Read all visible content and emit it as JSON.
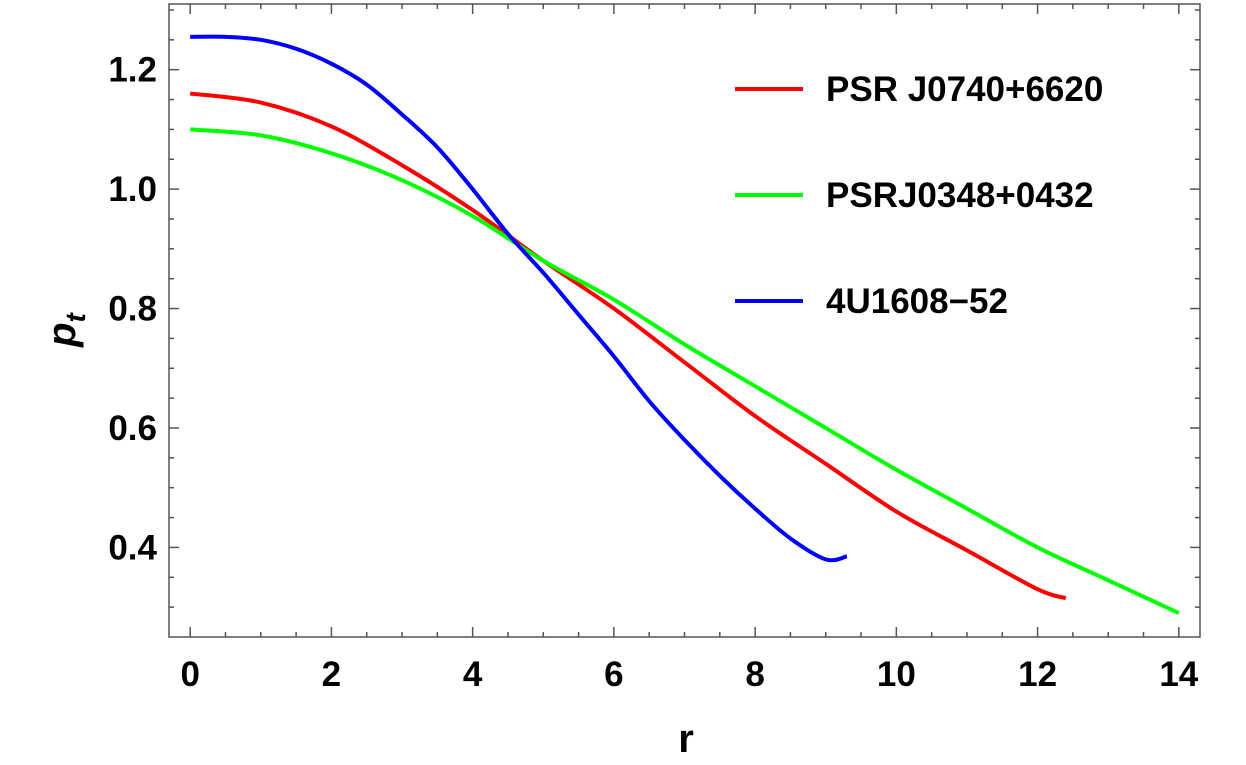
{
  "chart_data": {
    "type": "line",
    "title": "",
    "xlabel": "r",
    "ylabel_main": "p",
    "ylabel_sub": "t",
    "xlim": [
      -0.3,
      14.3
    ],
    "ylim": [
      0.25,
      1.31
    ],
    "x_ticks": [
      0,
      2,
      4,
      6,
      8,
      10,
      12,
      14
    ],
    "x_tick_labels": [
      "0",
      "2",
      "4",
      "6",
      "8",
      "10",
      "12",
      "14"
    ],
    "y_ticks": [
      0.4,
      0.6,
      0.8,
      1.0,
      1.2
    ],
    "y_tick_labels": [
      "0.4",
      "0.6",
      "0.8",
      "1.0",
      "1.2"
    ],
    "grid": false,
    "legend_position": "top-right",
    "series": [
      {
        "name": "PSR J0740+6620",
        "color": "#ff0000",
        "x": [
          0,
          1,
          2,
          3,
          4,
          5,
          6,
          7,
          8,
          9,
          10,
          11,
          12,
          12.4
        ],
        "y": [
          1.16,
          1.145,
          1.105,
          1.04,
          0.965,
          0.88,
          0.8,
          0.71,
          0.62,
          0.54,
          0.46,
          0.395,
          0.33,
          0.315
        ]
      },
      {
        "name": "PSRJ0348+0432",
        "color": "#00ff00",
        "x": [
          0,
          1,
          2,
          3,
          4,
          5,
          6,
          7,
          8,
          9,
          10,
          11,
          12,
          13,
          14
        ],
        "y": [
          1.1,
          1.09,
          1.06,
          1.015,
          0.955,
          0.88,
          0.815,
          0.74,
          0.67,
          0.6,
          0.53,
          0.465,
          0.4,
          0.345,
          0.29
        ]
      },
      {
        "name": "4U1608−52",
        "color": "#0000ff",
        "x": [
          0,
          0.5,
          1,
          1.5,
          2,
          2.5,
          3,
          3.5,
          4,
          4.5,
          5,
          5.5,
          6,
          6.5,
          7,
          7.5,
          8,
          8.5,
          9,
          9.3
        ],
        "y": [
          1.255,
          1.255,
          1.25,
          1.235,
          1.21,
          1.175,
          1.125,
          1.07,
          1.0,
          0.925,
          0.86,
          0.79,
          0.72,
          0.645,
          0.58,
          0.52,
          0.465,
          0.415,
          0.38,
          0.385
        ]
      }
    ]
  }
}
